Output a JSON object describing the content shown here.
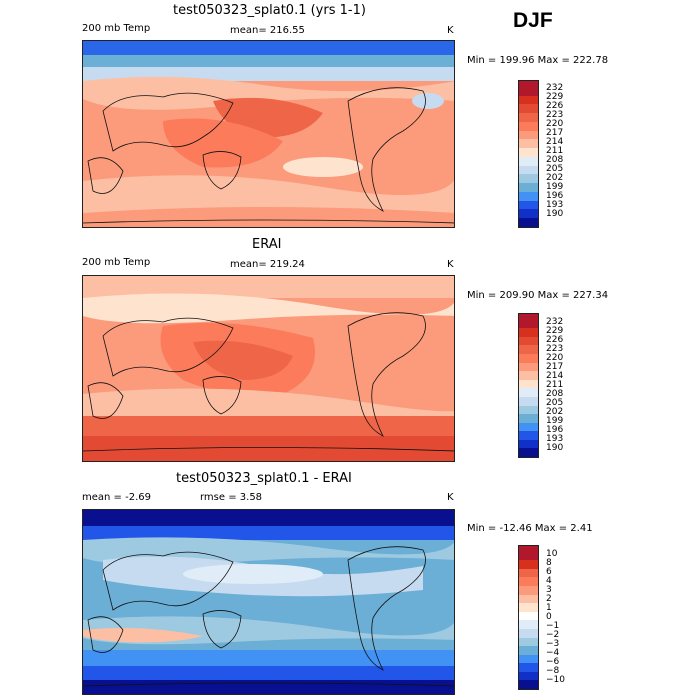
{
  "season": "DJF",
  "panels": [
    {
      "title": "test050323_splat0.1 (yrs 1-1)",
      "left_label": "200 mb Temp",
      "center_label": "mean= 216.55",
      "unit": "K",
      "minmax": "Min = 199.96 Max = 222.78",
      "levels": [
        "232",
        "229",
        "226",
        "223",
        "220",
        "217",
        "214",
        "211",
        "208",
        "205",
        "202",
        "199",
        "196",
        "193",
        "190"
      ],
      "colors": [
        "#b2182b",
        "#d7301f",
        "#e34a33",
        "#ef6548",
        "#fb7b5a",
        "#fc9a7c",
        "#fdbfa3",
        "#fee3cf",
        "#e0ecf8",
        "#c6dbef",
        "#9ecae1",
        "#6baed6",
        "#4292f6",
        "#2156e8",
        "#1030c8",
        "#08108f"
      ]
    },
    {
      "title": "ERAI",
      "left_label": "200 mb Temp",
      "center_label": "mean= 219.24",
      "unit": "K",
      "minmax": "Min = 209.90 Max = 227.34",
      "levels": [
        "232",
        "229",
        "226",
        "223",
        "220",
        "217",
        "214",
        "211",
        "208",
        "205",
        "202",
        "199",
        "196",
        "193",
        "190"
      ],
      "colors": [
        "#b2182b",
        "#d7301f",
        "#e34a33",
        "#ef6548",
        "#fb7b5a",
        "#fc9a7c",
        "#fdbfa3",
        "#fee3cf",
        "#e0ecf8",
        "#c6dbef",
        "#9ecae1",
        "#6baed6",
        "#4292f6",
        "#2156e8",
        "#1030c8",
        "#08108f"
      ]
    },
    {
      "title": "test050323_splat0.1 - ERAI",
      "left_label": "mean =  -2.69",
      "center_label": "rmse =   3.58",
      "unit": "K",
      "minmax": "Min = -12.46 Max =   2.41",
      "levels": [
        "10",
        "8",
        "6",
        "4",
        "3",
        "2",
        "1",
        "0",
        "−1",
        "−2",
        "−3",
        "−4",
        "−6",
        "−8",
        "−10"
      ],
      "colors": [
        "#b2182b",
        "#d7301f",
        "#ef6548",
        "#fb7b5a",
        "#fc9a7c",
        "#fdbfa3",
        "#fee3cf",
        "#ffffff",
        "#e0ecf8",
        "#c6dbef",
        "#9ecae1",
        "#6baed6",
        "#4292f6",
        "#2156e8",
        "#1030c8",
        "#08108f"
      ]
    }
  ]
}
